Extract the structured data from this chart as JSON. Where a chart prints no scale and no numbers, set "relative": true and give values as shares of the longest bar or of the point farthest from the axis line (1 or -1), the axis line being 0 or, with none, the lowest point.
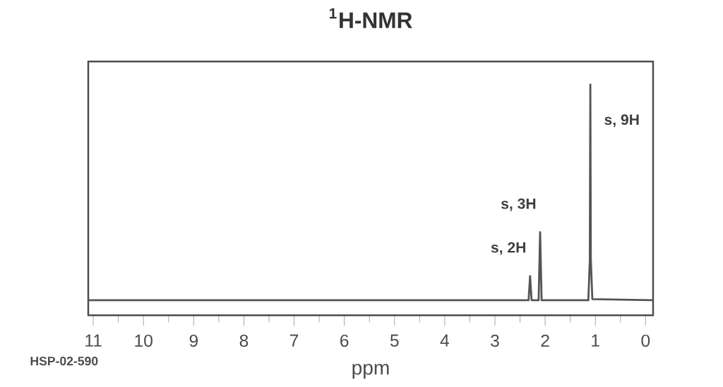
{
  "chart_data": {
    "type": "line",
    "title": "$^{1}$H-NMR",
    "xlabel": "ppm",
    "relative": true,
    "xlim": [
      11.1,
      -0.15
    ],
    "xticks": [
      11,
      10,
      9,
      8,
      7,
      6,
      5,
      4,
      3,
      2,
      1,
      0
    ],
    "series": [
      {
        "color": "#555555",
        "x": [
          11.1,
          2.33,
          2.3,
          2.27,
          2.13,
          2.1,
          2.07,
          1.14,
          1.11,
          1.1,
          1.09,
          1.06,
          -0.15
        ],
        "values": [
          0.065,
          0.065,
          0.17,
          0.065,
          0.065,
          0.36,
          0.065,
          0.065,
          0.24,
          1.0,
          0.24,
          0.07,
          0.065
        ]
      }
    ],
    "annotations": [
      {
        "text": "s, 2H",
        "x": 2.3,
        "y": 0.17
      },
      {
        "text": "s, 3H",
        "x": 2.1,
        "y": 0.36
      },
      {
        "text": "s, 9H",
        "x": 1.1,
        "y": 1.0
      },
      "HSP-02-590"
    ]
  }
}
